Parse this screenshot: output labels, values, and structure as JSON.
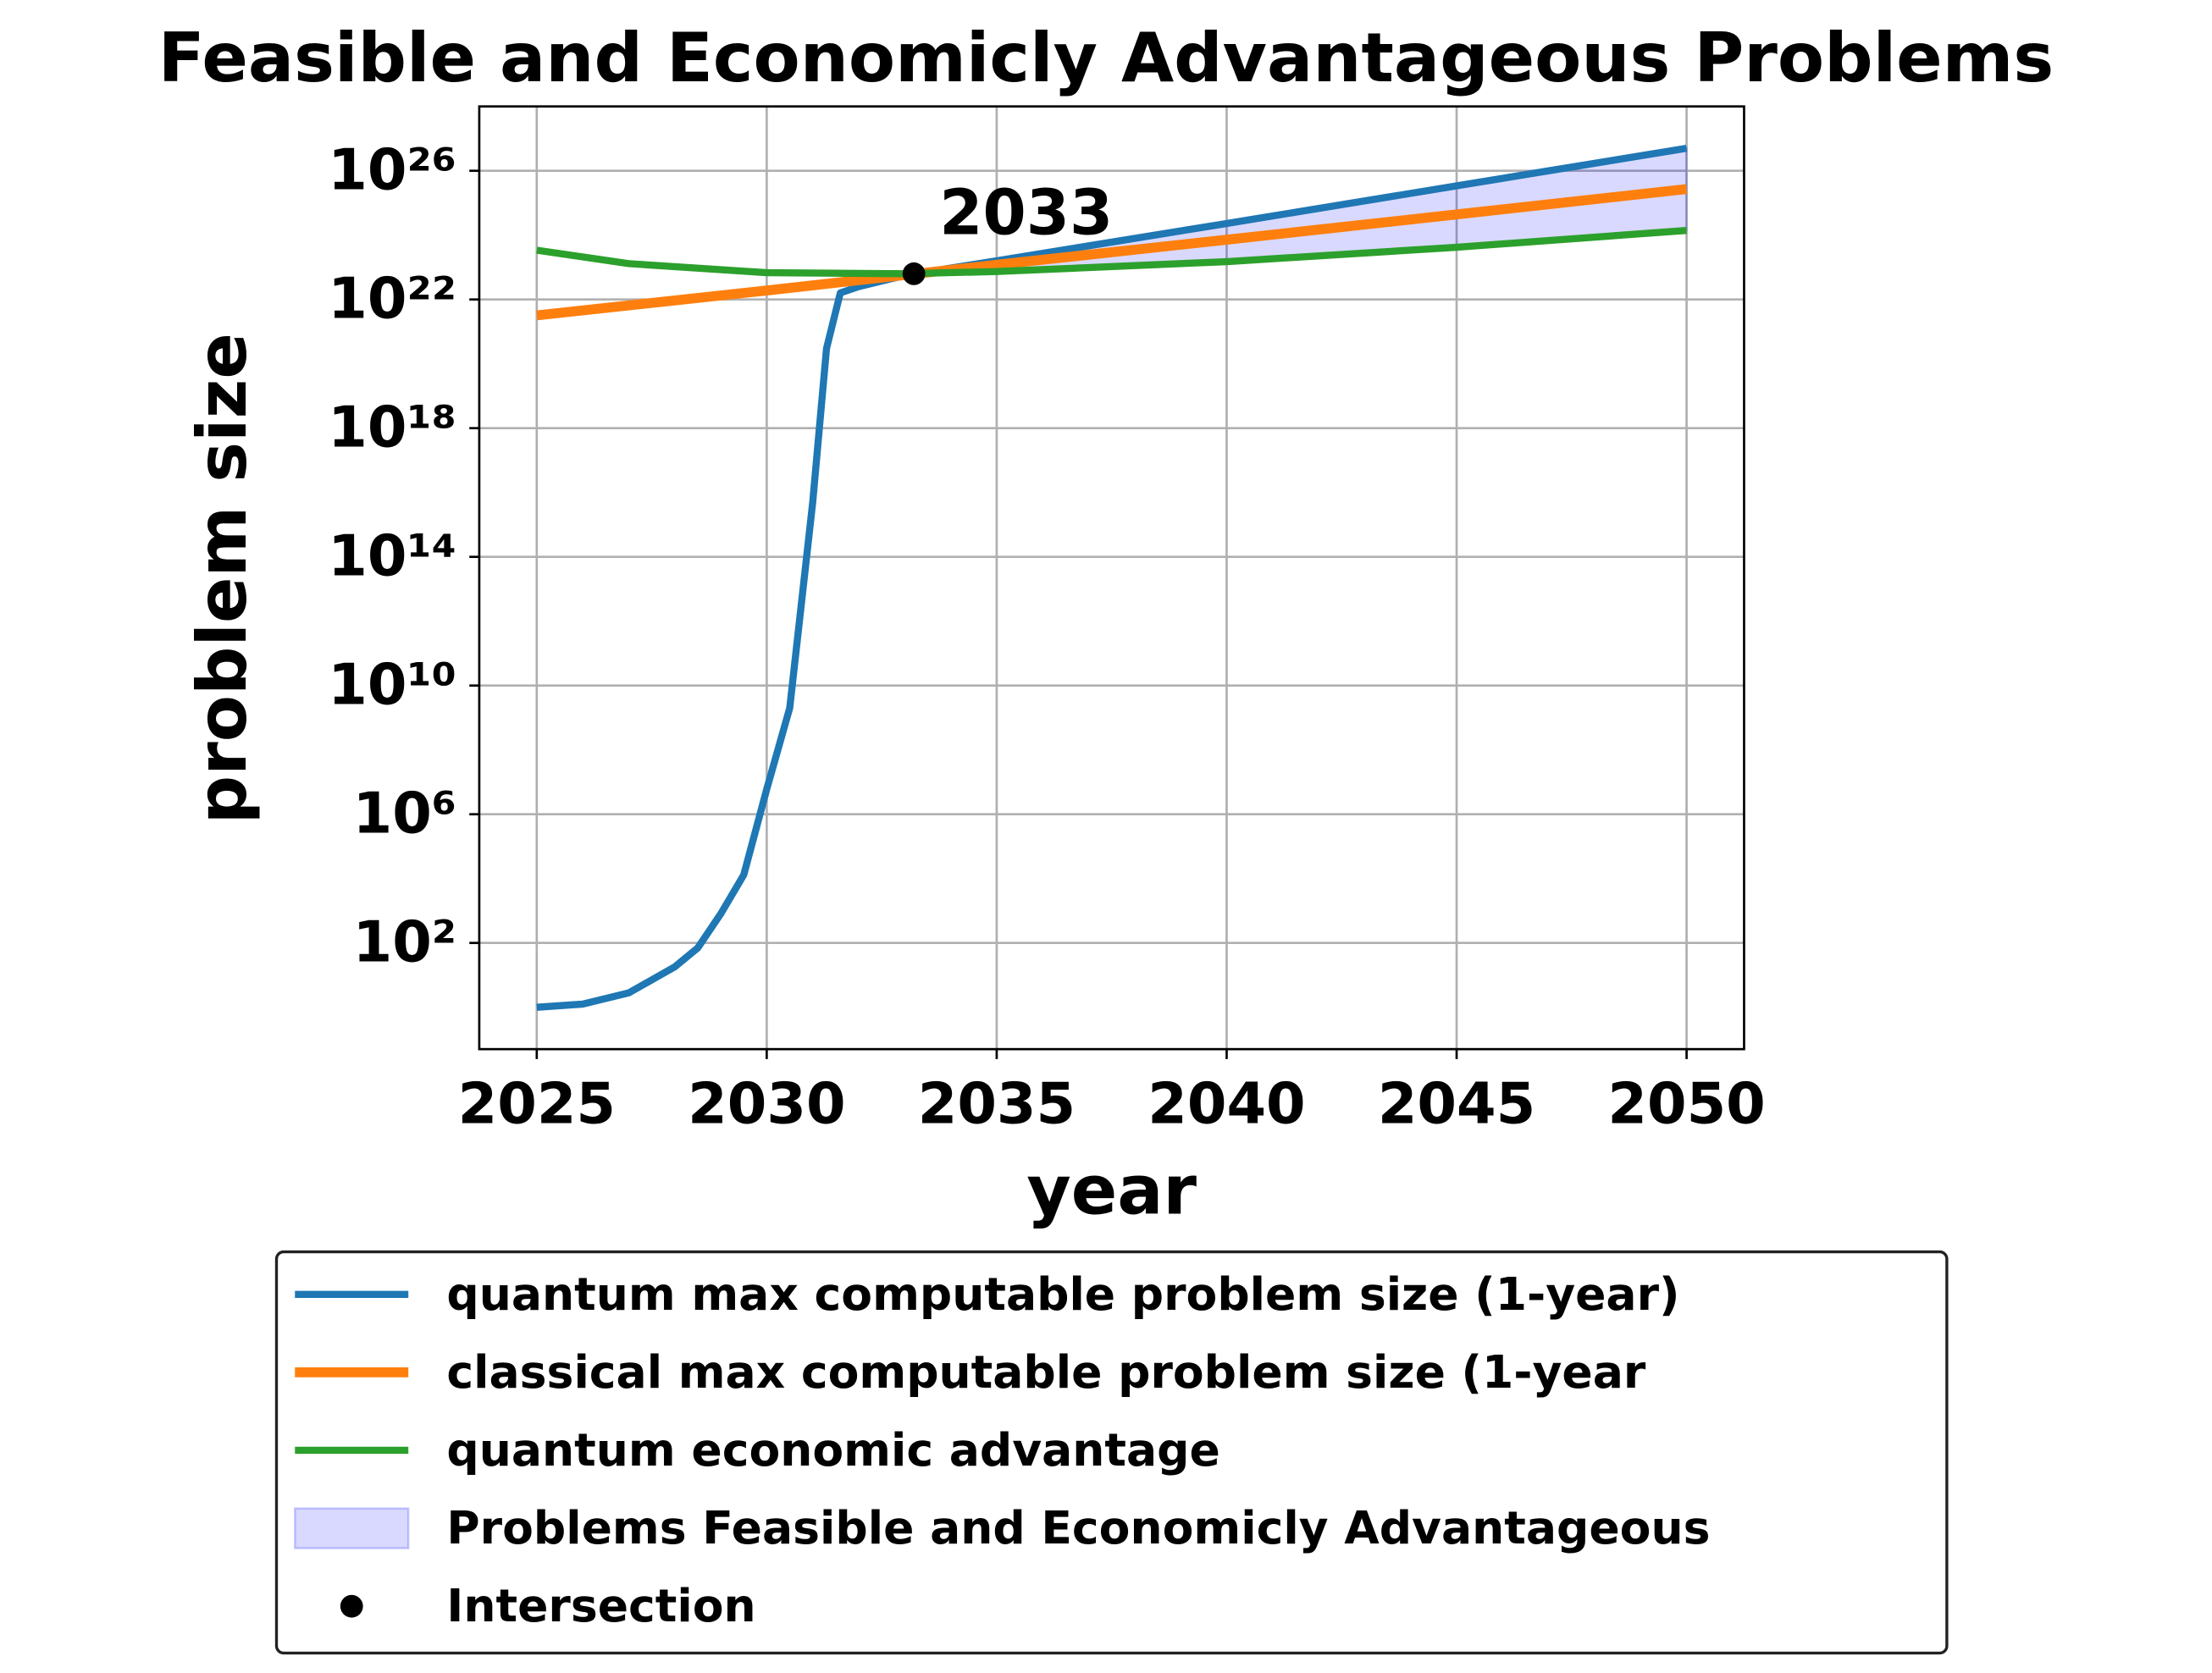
{
  "chart_data": {
    "type": "line",
    "title": "Feasible and Economicly Advantageous Problems",
    "xlabel": "year",
    "ylabel": "problem size",
    "log_scale_y": true,
    "grid": true,
    "legend_loc": "lower center",
    "xlim": [
      2023.75,
      2051.25
    ],
    "ylim": [
      0.05,
      1e+28
    ],
    "xticks": [
      2025,
      2030,
      2035,
      2040,
      2045,
      2050
    ],
    "yticks": [
      {
        "value": 100,
        "label": "10²"
      },
      {
        "value": 1000000.0,
        "label": "10⁶"
      },
      {
        "value": 10000000000.0,
        "label": "10¹⁰"
      },
      {
        "value": 100000000000000.0,
        "label": "10¹⁴"
      },
      {
        "value": 1e+18,
        "label": "10¹⁸"
      },
      {
        "value": 1e+22,
        "label": "10²²"
      },
      {
        "value": 1e+26,
        "label": "10²⁶"
      }
    ],
    "series": [
      {
        "name": "quantum max computable problem size (1-year)",
        "color": "#1f77b4",
        "x": [
          2025,
          2026,
          2027,
          2028,
          2028.5,
          2029,
          2029.5,
          2030,
          2030.5,
          2031,
          2031.3,
          2031.6,
          2032,
          2033,
          2035,
          2040,
          2045,
          2050
        ],
        "values": [
          1,
          1.26,
          2.8,
          18,
          70,
          800,
          13000,
          6000000,
          2000000000,
          5000000000000000.0,
          3e+20,
          1.6e+22,
          2.5e+22,
          5.6e+22,
          1.6e+23,
          2.3e+24,
          3.4e+25,
          5e+26
        ]
      },
      {
        "name": "classical max computable problem size (1-year",
        "color": "#ff7f0e",
        "x": [
          2025,
          2030,
          2035,
          2040,
          2045,
          2050
        ],
        "values": [
          3.2e+21,
          1.9e+22,
          1.2e+23,
          7.2e+23,
          4.4e+24,
          2.7e+25
        ]
      },
      {
        "name": "quantum economic advantage",
        "color": "#2ca02c",
        "x": [
          2025,
          2027,
          2030,
          2033,
          2035,
          2040,
          2045,
          2050
        ],
        "values": [
          3.4e+23,
          1.3e+23,
          6.8e+22,
          6.3e+22,
          7.4e+22,
          1.5e+23,
          4.2e+23,
          1.4e+24
        ]
      }
    ],
    "fill": {
      "name": "Problems Feasible and Economicly Advantageous",
      "color": "#0000ff"
    },
    "intersection": {
      "name": "Intersection",
      "x": 2033.2,
      "y": 6.3e+22,
      "color": "#000000"
    },
    "annotation": "2033"
  }
}
